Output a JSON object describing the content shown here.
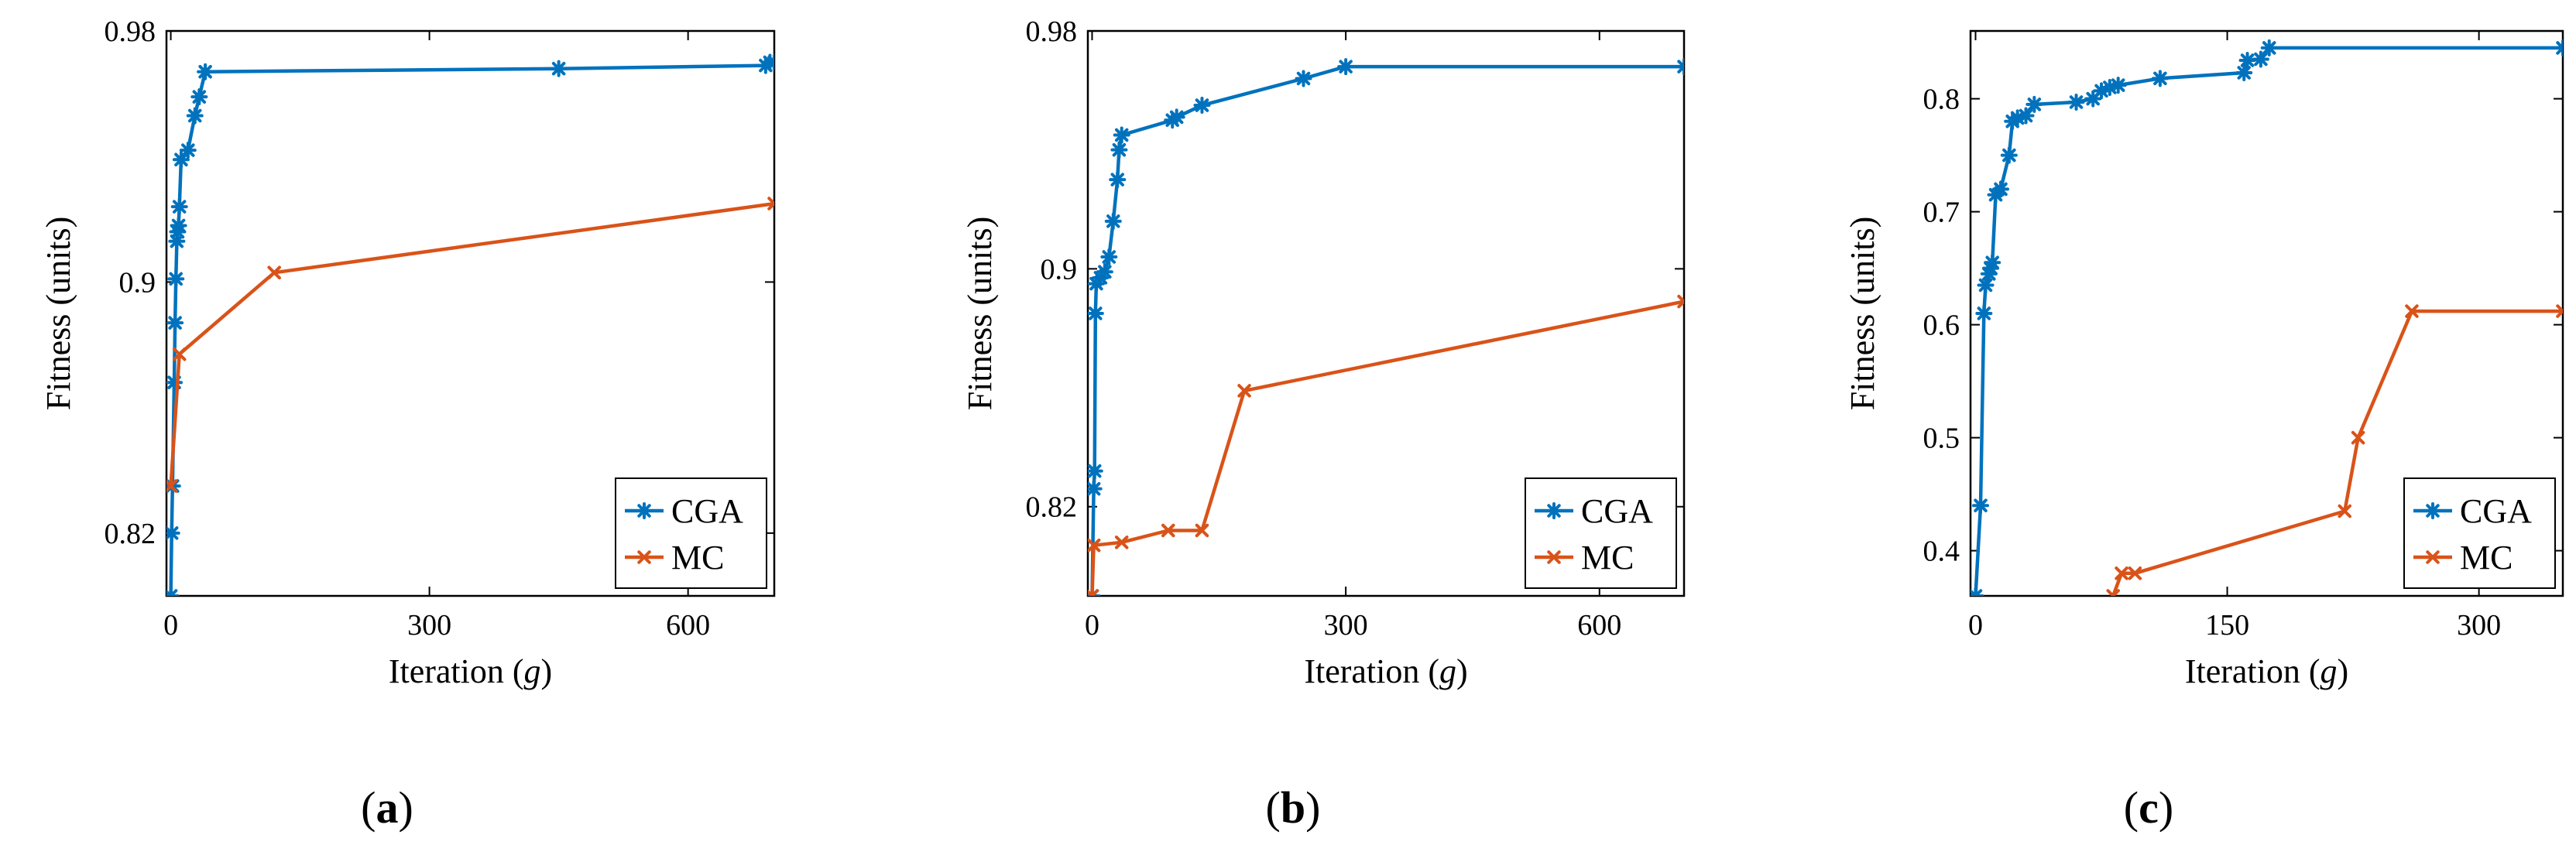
{
  "colors": {
    "cga": "#0072BD",
    "mc": "#D95319",
    "axis": "#000000",
    "background": "#ffffff"
  },
  "chart_data": [
    {
      "type": "line",
      "caption_letter": "a",
      "xlabel_prefix": "Iteration (",
      "xlabel_var": "g",
      "xlabel_suffix": ")",
      "ylabel": "Fitness (units)",
      "xlim": [
        -5,
        700
      ],
      "ylim": [
        0.8,
        0.98
      ],
      "xticks": [
        0,
        300,
        600
      ],
      "xtick_labels": [
        "0",
        "300",
        "600"
      ],
      "yticks": [
        0.82,
        0.9,
        0.98
      ],
      "ytick_labels": [
        "0.82",
        "0.9",
        "0.98"
      ],
      "legend_position": "bottom-right",
      "series": [
        {
          "name": "CGA",
          "marker": "asterisk",
          "x": [
            0,
            1,
            2,
            4,
            5,
            6,
            7,
            8,
            9,
            10,
            12,
            20,
            28,
            33,
            40,
            450,
            690,
            695,
            700
          ],
          "y": [
            0.8,
            0.82,
            0.835,
            0.868,
            0.887,
            0.901,
            0.913,
            0.916,
            0.918,
            0.924,
            0.939,
            0.942,
            0.953,
            0.959,
            0.967,
            0.968,
            0.969,
            0.97,
            0.97
          ]
        },
        {
          "name": "MC",
          "marker": "cross",
          "x": [
            0,
            10,
            120,
            700
          ],
          "y": [
            0.835,
            0.877,
            0.903,
            0.925
          ]
        }
      ]
    },
    {
      "type": "line",
      "caption_letter": "b",
      "xlabel_prefix": "Iteration (",
      "xlabel_var": "g",
      "xlabel_suffix": ")",
      "ylabel": "Fitness (units)",
      "xlim": [
        -5,
        700
      ],
      "ylim": [
        0.79,
        0.98
      ],
      "xticks": [
        0,
        300,
        600
      ],
      "xtick_labels": [
        "0",
        "300",
        "600"
      ],
      "yticks": [
        0.82,
        0.9,
        0.98
      ],
      "ytick_labels": [
        "0.82",
        "0.9",
        "0.98"
      ],
      "legend_position": "bottom-right",
      "series": [
        {
          "name": "CGA",
          "marker": "asterisk",
          "x": [
            0,
            2,
            3,
            4,
            5,
            10,
            15,
            20,
            25,
            30,
            32,
            35,
            95,
            100,
            130,
            250,
            300,
            700
          ],
          "y": [
            0.79,
            0.826,
            0.832,
            0.885,
            0.895,
            0.897,
            0.899,
            0.904,
            0.916,
            0.93,
            0.94,
            0.945,
            0.95,
            0.951,
            0.955,
            0.964,
            0.968,
            0.968
          ]
        },
        {
          "name": "MC",
          "marker": "cross",
          "x": [
            0,
            2,
            35,
            90,
            130,
            180,
            700
          ],
          "y": [
            0.79,
            0.807,
            0.808,
            0.812,
            0.812,
            0.859,
            0.889
          ]
        }
      ]
    },
    {
      "type": "line",
      "caption_letter": "c",
      "xlabel_prefix": "Iteration (",
      "xlabel_var": "g",
      "xlabel_suffix": ")",
      "ylabel": "Fitness (units)",
      "xlim": [
        -3,
        350
      ],
      "ylim": [
        0.36,
        0.86
      ],
      "xticks": [
        0,
        150,
        300
      ],
      "xtick_labels": [
        "0",
        "150",
        "300"
      ],
      "yticks": [
        0.4,
        0.5,
        0.6,
        0.7,
        0.8
      ],
      "ytick_labels": [
        "0.4",
        "0.5",
        "0.6",
        "0.7",
        "0.8"
      ],
      "legend_position": "bottom-right",
      "series": [
        {
          "name": "CGA",
          "marker": "asterisk",
          "x": [
            0,
            3,
            5,
            6,
            8,
            9,
            10,
            12,
            15,
            20,
            22,
            25,
            30,
            35,
            60,
            70,
            75,
            80,
            85,
            110,
            160,
            162,
            170,
            175,
            350
          ],
          "y": [
            0.36,
            0.44,
            0.61,
            0.635,
            0.645,
            0.65,
            0.655,
            0.715,
            0.72,
            0.75,
            0.78,
            0.783,
            0.785,
            0.795,
            0.797,
            0.8,
            0.807,
            0.81,
            0.812,
            0.818,
            0.823,
            0.834,
            0.835,
            0.845,
            0.845
          ]
        },
        {
          "name": "MC",
          "marker": "cross",
          "x": [
            82,
            87,
            95,
            220,
            228,
            260,
            350
          ],
          "y": [
            0.36,
            0.38,
            0.38,
            0.435,
            0.5,
            0.612,
            0.612
          ]
        }
      ]
    }
  ]
}
